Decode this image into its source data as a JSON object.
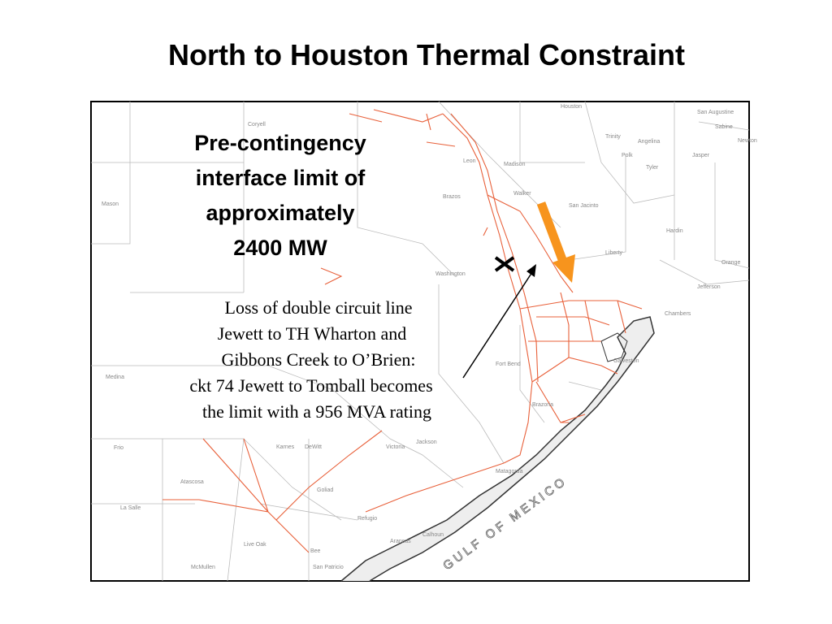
{
  "title": "North to Houston Thermal Constraint",
  "callouts": {
    "limit": [
      "Pre-contingency",
      "interface limit of",
      "approximately",
      "2400 MW"
    ],
    "contingency": [
      "Loss of double circuit line",
      "Jewett to TH Wharton and",
      "Gibbons Creek to O’Brien:",
      "ckt 74 Jewett to Tomball becomes",
      "the limit with a 956 MVA rating"
    ]
  },
  "map": {
    "labels": [
      "Coryell",
      "Mason",
      "Houston",
      "Trinity",
      "Angelina",
      "San Augustine",
      "Sabine",
      "Newton",
      "Polk",
      "Jasper",
      "Tyler",
      "Leon",
      "Madison",
      "Walker",
      "Brazos",
      "San Jacinto",
      "Hardin",
      "Liberty",
      "Orange",
      "Jefferson",
      "Chambers",
      "Washington",
      "Fort Bend",
      "Brazoria",
      "Jackson",
      "Victoria",
      "DeWitt",
      "Karnes",
      "Goliad",
      "Refugio",
      "Calhoun",
      "Aransas",
      "Bee",
      "San Patricio",
      "Live Oak",
      "McMullen",
      "La Salle",
      "Atascosa",
      "Frio",
      "Medina",
      "Matagorda",
      "Galveston"
    ],
    "gulf": "GULF OF MEXICO"
  }
}
